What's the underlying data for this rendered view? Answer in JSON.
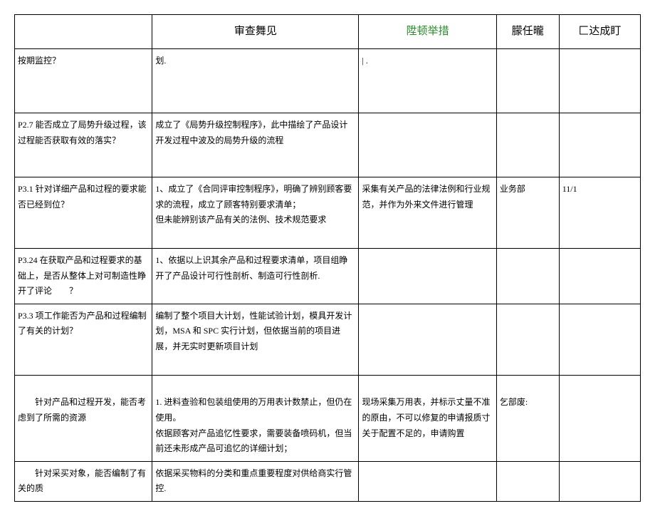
{
  "headers": {
    "col1": "",
    "col2": "审查舞见",
    "col3": "陞顿举措",
    "col4": "朦任曨",
    "col5": "匚达成盯"
  },
  "rows": [
    {
      "q": "按期监控？",
      "a": "划.",
      "m": "| .",
      "r": "",
      "d": ""
    },
    {
      "q": "P2.7 能否成立了局势升级过程，该过程能否获取有效的落实？",
      "a": "成立了《局势升级控制程序》，此中描绘了产品设计开发过程中波及的局势升级的流程",
      "m": "",
      "r": "",
      "d": ""
    },
    {
      "q": "P3.1 针对详细产品和过程的要求能否已经到位？",
      "a": "1、成立了《合同评审控制程序》，明确了辨别顾客要求的流程，成立了顾客特别要求清单；\n但未能辨别该产品有关的法例、技术规范要求",
      "m": "采集有关产品的法律法例和行业规范，并作为外来文件进行管理",
      "r": "业务部",
      "d": "11/1"
    },
    {
      "q": "P3.24 在获取产品和过程要求的基础上，是否从整体上对可制造性睁开了评论　　？",
      "a": "1、依据以上识其余产品和过程要求清单，项目组睁开了产品设计可行性剖析、制造可行性剖析.",
      "m": "",
      "r": "",
      "d": ""
    },
    {
      "q": "P3.3 项工作能否为产品和过程编制了有关的计划？",
      "a": "编制了整个项目大计划，性能试验计划，模具开发计划，MSA 和 SPC 实行计划，但依据当前的项目进展，并无实时更新项目计划",
      "m": "",
      "r": "",
      "d": ""
    },
    {
      "q": "\n　　针对产品和过程开发，能否考虑到了所需的资源",
      "a": "\n1. 进料查验和包装组使用的万用表计数禁止，但仍在使用。\n依据顾客对产品追忆性要求，需要装备喷码机，但当前还未形成产品可追忆的详细计划；",
      "m": "\n现场采集万用表，并标示丈量不准的原由，不可以修复的申请报质寸关于配置不足的，申请购置",
      "r": "\n乞部废:",
      "d": ""
    },
    {
      "q": "　　针对采买对象，能否编制了有关的质",
      "a": "依据采买物料的分类和重点重要程度对供给商实行管控.",
      "m": "",
      "r": "",
      "d": ""
    }
  ],
  "style": {
    "borderColor": "#000000",
    "greenColor": "#2a8a2a",
    "fontSize": 12,
    "headerFontSize": 15
  }
}
